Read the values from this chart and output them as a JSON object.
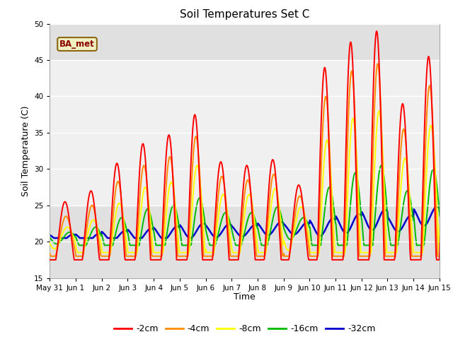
{
  "title": "Soil Temperatures Set C",
  "xlabel": "Time",
  "ylabel": "Soil Temperature (C)",
  "ylim": [
    15,
    50
  ],
  "yticks": [
    15,
    20,
    25,
    30,
    35,
    40,
    45,
    50
  ],
  "label_annotation": "BA_met",
  "series_colors": [
    "#ff0000",
    "#ff8c00",
    "#ffff00",
    "#00bb00",
    "#0000cc"
  ],
  "series_labels": [
    "-2cm",
    "-4cm",
    "-8cm",
    "-16cm",
    "-32cm"
  ],
  "n_days": 16,
  "pts_per_day": 48,
  "daily_base": [
    20.5,
    20.5,
    20.8,
    21.0,
    21.2,
    21.5,
    21.5,
    21.5,
    21.8,
    21.8,
    22.0,
    22.5,
    23.0,
    22.5,
    23.5,
    23.5
  ],
  "daily_amps_2cm": [
    5.0,
    6.5,
    10.0,
    12.5,
    13.5,
    16.0,
    9.5,
    9.0,
    9.5,
    6.0,
    22.0,
    25.0,
    26.0,
    16.5,
    22.0,
    4.0
  ],
  "daily_amps_4cm": [
    3.0,
    4.5,
    7.5,
    9.5,
    10.5,
    13.0,
    7.5,
    7.0,
    7.5,
    4.5,
    18.0,
    21.0,
    21.5,
    13.0,
    18.0,
    3.5
  ],
  "daily_amps_8cm": [
    1.5,
    2.5,
    4.5,
    6.5,
    7.0,
    9.0,
    5.0,
    5.0,
    5.5,
    3.0,
    12.0,
    14.5,
    15.0,
    9.0,
    12.5,
    2.0
  ],
  "daily_amps_16cm": [
    0.8,
    1.5,
    2.5,
    3.5,
    3.8,
    4.5,
    2.5,
    2.5,
    3.0,
    1.5,
    5.5,
    7.0,
    7.5,
    4.5,
    6.5,
    1.0
  ],
  "daily_amps_32cm": [
    0.5,
    0.6,
    0.7,
    0.8,
    0.9,
    1.0,
    0.9,
    0.8,
    0.9,
    0.8,
    1.2,
    1.3,
    1.4,
    1.1,
    1.3,
    0.6
  ],
  "phase_offsets": [
    0.0,
    0.04,
    0.09,
    0.18,
    0.32
  ],
  "clip_mins": [
    17.5,
    18.0,
    18.5,
    19.5,
    20.5
  ],
  "clip_maxs": [
    50,
    50,
    50,
    50,
    50
  ],
  "band_ranges": [
    [
      35,
      45
    ],
    [
      25,
      35
    ]
  ],
  "band_color": "#d8d8d8",
  "tick_labels": [
    "May 31",
    "Jun 1",
    "Jun 2",
    "Jun 3",
    "Jun 4",
    "Jun 5",
    "Jun 6",
    "Jun 7",
    "Jun 8",
    "Jun 9",
    "Jun 10",
    "Jun 11",
    "Jun 12",
    "Jun 13",
    "Jun 14",
    "Jun 15"
  ]
}
